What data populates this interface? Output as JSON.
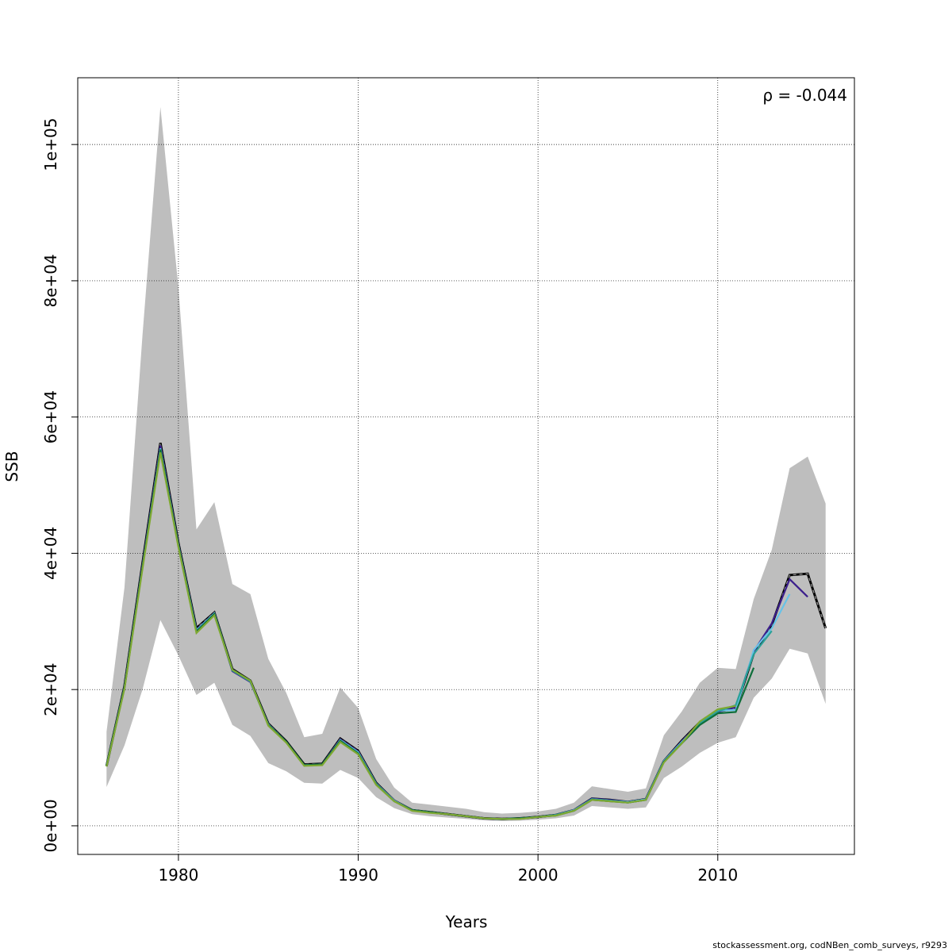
{
  "chart_data": {
    "type": "line",
    "xlabel": "Years",
    "ylabel": "SSB",
    "xlim": [
      1974.4,
      2017.6
    ],
    "ylim": [
      -4200,
      109800
    ],
    "x_ticks": [
      1980,
      1990,
      2000,
      2010
    ],
    "x_tick_labels": [
      "1980",
      "1990",
      "2000",
      "2010"
    ],
    "y_ticks": [
      0,
      20000,
      40000,
      60000,
      80000,
      100000
    ],
    "y_tick_labels": [
      "0e+00",
      "2e+04",
      "4e+04",
      "6e+04",
      "8e+04",
      "1e+05"
    ],
    "grid": true,
    "annotation": "ρ = -0.044",
    "band_color": "#bebebe",
    "confidence_band": {
      "x": [
        1976,
        1977,
        1978,
        1979,
        1980,
        1981,
        1982,
        1983,
        1984,
        1985,
        1986,
        1987,
        1988,
        1989,
        1990,
        1991,
        1992,
        1993,
        1994,
        1995,
        1996,
        1997,
        1998,
        1999,
        2000,
        2001,
        2002,
        2003,
        2004,
        2005,
        2006,
        2007,
        2008,
        2009,
        2010,
        2011,
        2012,
        2013,
        2014,
        2015,
        2016
      ],
      "lower": [
        5700,
        11800,
        20000,
        30200,
        25000,
        19200,
        21000,
        14800,
        13200,
        9200,
        8000,
        6300,
        6200,
        8200,
        7000,
        4200,
        2600,
        1700,
        1400,
        1200,
        1000,
        800,
        700,
        750,
        900,
        1100,
        1500,
        2900,
        2700,
        2500,
        2700,
        7000,
        8700,
        10700,
        12200,
        13000,
        18800,
        21600,
        26000,
        25300,
        17900
      ],
      "upper": [
        13800,
        35000,
        72000,
        105500,
        79000,
        43500,
        47500,
        35500,
        34000,
        24500,
        19500,
        13000,
        13500,
        20300,
        17300,
        9800,
        5600,
        3400,
        3100,
        2800,
        2500,
        2000,
        1800,
        1900,
        2100,
        2500,
        3400,
        5800,
        5400,
        5000,
        5500,
        13300,
        16800,
        21000,
        23200,
        23000,
        33300,
        40500,
        52500,
        54200,
        47300
      ]
    },
    "series": [
      {
        "name": "",
        "color": "#000000",
        "dashed": true,
        "x": [
          1976,
          1977,
          1978,
          1979,
          1980,
          1981,
          1982,
          1983,
          1984,
          1985,
          1986,
          1987,
          1988,
          1989,
          1990,
          1991,
          1992,
          1993,
          1994,
          1995,
          1996,
          1997,
          1998,
          1999,
          2000,
          2001,
          2002,
          2003,
          2004,
          2005,
          2006,
          2007,
          2008,
          2009,
          2010,
          2011,
          2012,
          2013,
          2014,
          2015,
          2016
        ],
        "values": [
          8800,
          20500,
          38500,
          56200,
          41500,
          29000,
          31300,
          23000,
          21300,
          15000,
          12400,
          9000,
          9100,
          12800,
          11000,
          6300,
          3700,
          2300,
          2000,
          1700,
          1400,
          1100,
          1000,
          1100,
          1300,
          1600,
          2300,
          4000,
          3800,
          3500,
          3900,
          9500,
          12500,
          15200,
          16800,
          17200,
          25300,
          29500,
          36800,
          37000,
          29000
        ]
      },
      {
        "name": "",
        "color": "#3b1e8c",
        "dashed": false,
        "x": [
          1976,
          1977,
          1978,
          1979,
          1980,
          1981,
          1982,
          1983,
          1984,
          1985,
          1986,
          1987,
          1988,
          1989,
          1990,
          1991,
          1992,
          1993,
          1994,
          1995,
          1996,
          1997,
          1998,
          1999,
          2000,
          2001,
          2002,
          2003,
          2004,
          2005,
          2006,
          2007,
          2008,
          2009,
          2010,
          2011,
          2012,
          2013,
          2014,
          2015
        ],
        "values": [
          8800,
          20400,
          38300,
          55800,
          41300,
          28800,
          31200,
          22700,
          21100,
          14900,
          12300,
          8900,
          9000,
          12700,
          10900,
          6200,
          3700,
          2300,
          2000,
          1700,
          1400,
          1100,
          1000,
          1100,
          1300,
          1600,
          2300,
          4000,
          3800,
          3500,
          3900,
          9500,
          12400,
          15100,
          16700,
          17400,
          25600,
          29700,
          36200,
          33600
        ]
      },
      {
        "name": "",
        "color": "#66c2e8",
        "dashed": false,
        "x": [
          1976,
          1977,
          1978,
          1979,
          1980,
          1981,
          1982,
          1983,
          1984,
          1985,
          1986,
          1987,
          1988,
          1989,
          1990,
          1991,
          1992,
          1993,
          1994,
          1995,
          1996,
          1997,
          1998,
          1999,
          2000,
          2001,
          2002,
          2003,
          2004,
          2005,
          2006,
          2007,
          2008,
          2009,
          2010,
          2011,
          2012,
          2013,
          2014
        ],
        "values": [
          8800,
          20300,
          38000,
          55400,
          41200,
          28700,
          31200,
          22900,
          21200,
          14900,
          12300,
          8900,
          9000,
          12600,
          10800,
          6200,
          3700,
          2300,
          2000,
          1700,
          1400,
          1100,
          1000,
          1100,
          1300,
          1600,
          2300,
          3900,
          3700,
          3500,
          3900,
          9500,
          12300,
          15000,
          16900,
          17000,
          25800,
          29000,
          34000
        ]
      },
      {
        "name": "",
        "color": "#2aa198",
        "dashed": false,
        "x": [
          1976,
          1977,
          1978,
          1979,
          1980,
          1981,
          1982,
          1983,
          1984,
          1985,
          1986,
          1987,
          1988,
          1989,
          1990,
          1991,
          1992,
          1993,
          1994,
          1995,
          1996,
          1997,
          1998,
          1999,
          2000,
          2001,
          2002,
          2003,
          2004,
          2005,
          2006,
          2007,
          2008,
          2009,
          2010,
          2011,
          2012,
          2013
        ],
        "values": [
          8800,
          20300,
          38000,
          55300,
          41100,
          28600,
          31100,
          22800,
          21200,
          14800,
          12300,
          8900,
          9000,
          12500,
          10700,
          6100,
          3600,
          2300,
          2000,
          1700,
          1400,
          1100,
          1000,
          1100,
          1300,
          1600,
          2200,
          3900,
          3700,
          3400,
          3800,
          9400,
          12200,
          15000,
          16800,
          17700,
          25200,
          28600
        ]
      },
      {
        "name": "",
        "color": "#0e6e3a",
        "dashed": false,
        "x": [
          1976,
          1977,
          1978,
          1979,
          1980,
          1981,
          1982,
          1983,
          1984,
          1985,
          1986,
          1987,
          1988,
          1989,
          1990,
          1991,
          1992,
          1993,
          1994,
          1995,
          1996,
          1997,
          1998,
          1999,
          2000,
          2001,
          2002,
          2003,
          2004,
          2005,
          2006,
          2007,
          2008,
          2009,
          2010,
          2011,
          2012
        ],
        "values": [
          8800,
          20300,
          38000,
          55200,
          41100,
          28500,
          31100,
          22900,
          21300,
          14800,
          12300,
          8900,
          9000,
          12500,
          10600,
          6100,
          3600,
          2300,
          2000,
          1700,
          1400,
          1100,
          1000,
          1100,
          1300,
          1500,
          2200,
          3800,
          3600,
          3400,
          3800,
          9400,
          12100,
          14800,
          16500,
          16700,
          23200
        ]
      },
      {
        "name": "",
        "color": "#7ea832",
        "dashed": false,
        "x": [
          1976,
          1977,
          1978,
          1979,
          1980,
          1981,
          1982,
          1983,
          1984,
          1985,
          1986,
          1987,
          1988,
          1989,
          1990,
          1991,
          1992,
          1993,
          1994,
          1995,
          1996,
          1997,
          1998,
          1999,
          2000,
          2001,
          2002,
          2003,
          2004,
          2005,
          2006,
          2007,
          2008,
          2009,
          2010,
          2011
        ],
        "values": [
          8700,
          20100,
          37700,
          54800,
          40900,
          28300,
          30900,
          22900,
          21300,
          14700,
          12200,
          8800,
          8900,
          12300,
          10500,
          6000,
          3600,
          2200,
          1900,
          1700,
          1400,
          1100,
          1000,
          1000,
          1300,
          1500,
          2200,
          3800,
          3600,
          3400,
          3800,
          9300,
          12100,
          15300,
          17100,
          17600
        ]
      }
    ]
  },
  "footer": "stockassessment.org, codNBen_comb_surveys, r9293"
}
